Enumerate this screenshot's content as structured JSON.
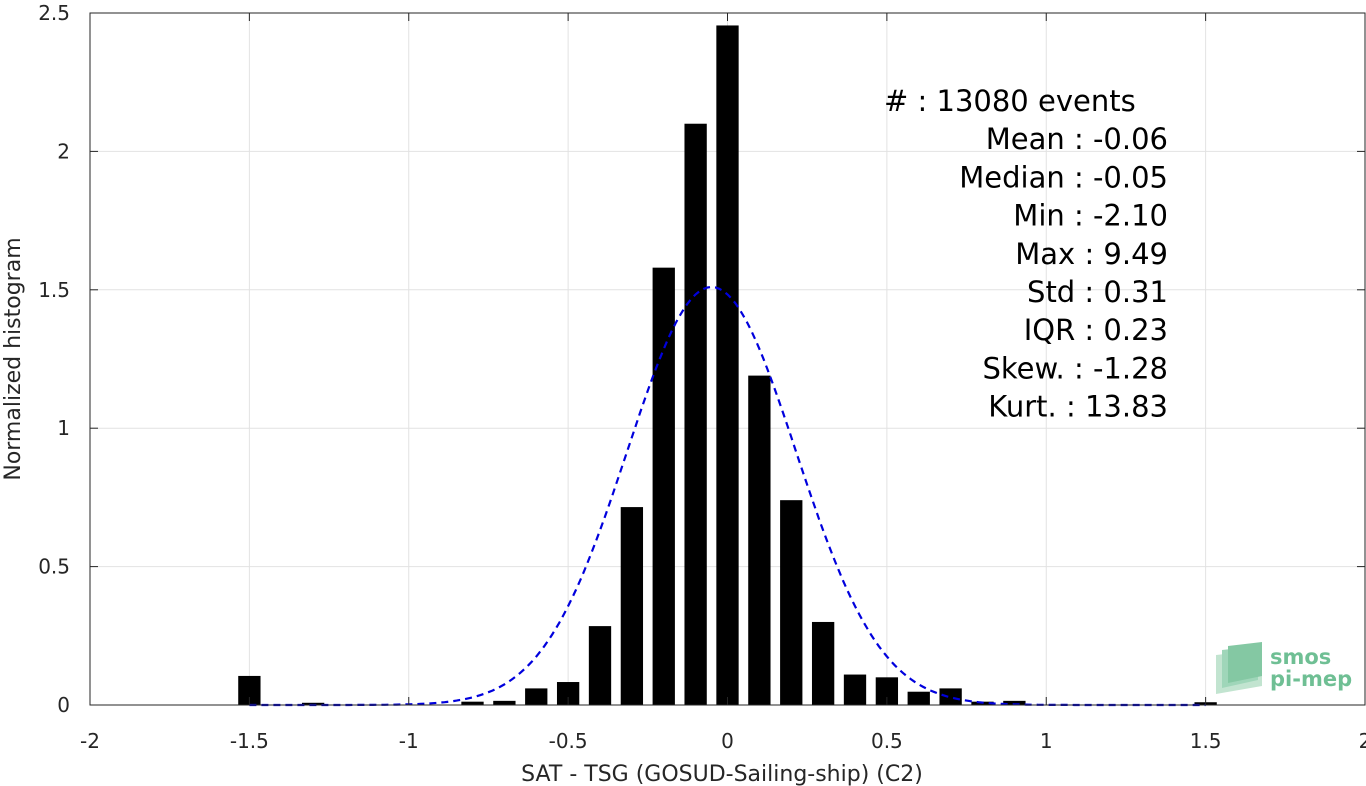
{
  "chart_data": {
    "type": "bar",
    "xlabel": "SAT - TSG (GOSUD-Sailing-ship) (C2)",
    "ylabel": "Normalized histogram",
    "xlim": [
      -2,
      2
    ],
    "ylim": [
      0,
      2.5
    ],
    "x_ticks": [
      -2,
      -1.5,
      -1,
      -0.5,
      0,
      0.5,
      1,
      1.5,
      2
    ],
    "x_tick_labels": [
      "-2",
      "-1.5",
      "-1",
      "-0.5",
      "0",
      "0.5",
      "1",
      "1.5",
      "2"
    ],
    "y_ticks": [
      0,
      0.5,
      1,
      1.5,
      2,
      2.5
    ],
    "y_tick_labels": [
      "0",
      "0.5",
      "1",
      "1.5",
      "2",
      "2.5"
    ],
    "grid": true,
    "bar_width": 0.07,
    "bars": {
      "x": [
        -1.5,
        -1.3,
        -0.8,
        -0.7,
        -0.6,
        -0.5,
        -0.4,
        -0.3,
        -0.2,
        -0.1,
        0.0,
        0.1,
        0.2,
        0.3,
        0.4,
        0.5,
        0.6,
        0.7,
        0.8,
        0.9,
        1.5
      ],
      "values": [
        0.105,
        0.008,
        0.012,
        0.015,
        0.06,
        0.083,
        0.285,
        0.715,
        1.58,
        2.1,
        2.455,
        1.19,
        0.74,
        0.3,
        0.11,
        0.1,
        0.048,
        0.06,
        0.012,
        0.015,
        0.01
      ],
      "color": "#000000"
    },
    "fit_curve": {
      "style": "dashed",
      "color": "#0000dd",
      "x_range": [
        -1.5,
        1.5
      ],
      "mean": -0.05,
      "std": 0.265,
      "peak": 1.51
    },
    "stats": [
      {
        "label": "#  : 13080 events",
        "align": "start"
      },
      {
        "label": "Mean : -0.06",
        "align": "end"
      },
      {
        "label": "Median : -0.05",
        "align": "end"
      },
      {
        "label": "Min : -2.10",
        "align": "end"
      },
      {
        "label": "Max : 9.49",
        "align": "end"
      },
      {
        "label": "Std : 0.31",
        "align": "end"
      },
      {
        "label": "IQR : 0.23",
        "align": "end"
      },
      {
        "label": "Skew. : -1.28",
        "align": "end"
      },
      {
        "label": "Kurt. : 13.83",
        "align": "end"
      }
    ]
  },
  "logo": {
    "line1": "smos",
    "line2": "pi-mep",
    "color": "#6fbf94"
  }
}
